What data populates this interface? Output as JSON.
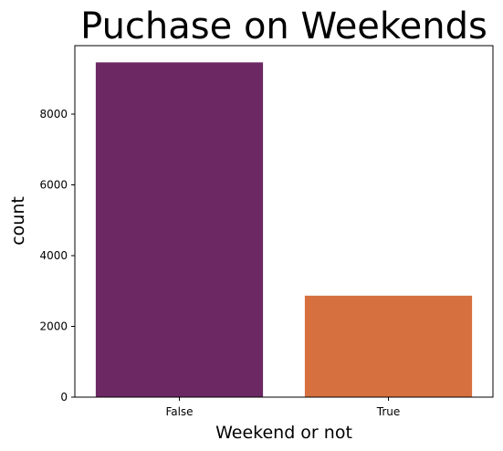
{
  "chart_data": {
    "type": "bar",
    "title": "Puchase on Weekends",
    "xlabel": "Weekend or not",
    "ylabel": "count",
    "categories": [
      "False",
      "True"
    ],
    "values": [
      9462,
      2868
    ],
    "colors": [
      "#6c2863",
      "#d6703e"
    ],
    "ylim": [
      0,
      9935
    ],
    "yticks": [
      0,
      2000,
      4000,
      6000,
      8000
    ],
    "grid": false,
    "legend": "none"
  }
}
